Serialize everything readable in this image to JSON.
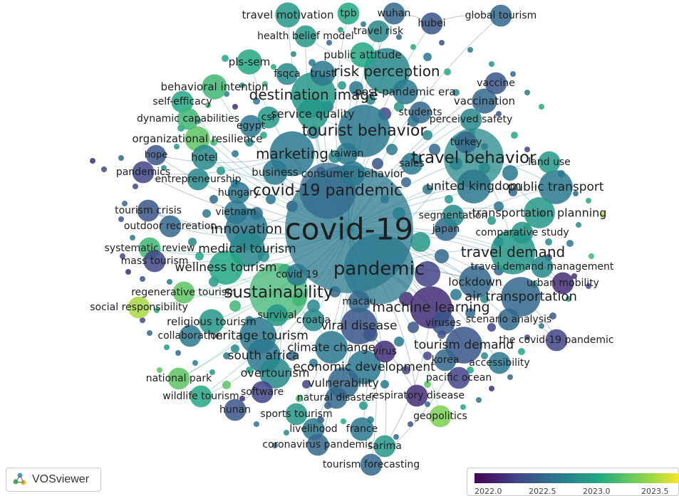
{
  "app": {
    "name": "VOSviewer"
  },
  "network": {
    "nodes": [
      {
        "id": "covid-19",
        "c": 2022.6,
        "w": 1.0
      },
      {
        "id": "pandemic",
        "c": 2022.6,
        "w": 0.45
      },
      {
        "id": "covid-19 pandemic",
        "c": 2022.5,
        "w": 0.33
      },
      {
        "id": "sustainability",
        "c": 2023.0,
        "w": 0.35
      },
      {
        "id": "travel behavior",
        "c": 2022.7,
        "w": 0.36
      },
      {
        "id": "tourist behavior",
        "c": 2022.6,
        "w": 0.3
      },
      {
        "id": "risk perception",
        "c": 2022.7,
        "w": 0.25
      },
      {
        "id": "destination image",
        "c": 2022.8,
        "w": 0.24
      },
      {
        "id": "marketing",
        "c": 2022.6,
        "w": 0.24
      },
      {
        "id": "travel demand",
        "c": 2022.8,
        "w": 0.24
      },
      {
        "id": "machine learning",
        "c": 2022.2,
        "w": 0.22
      },
      {
        "id": "innovation",
        "c": 2022.6,
        "w": 0.22
      },
      {
        "id": "viral disease",
        "c": 2022.4,
        "w": 0.18
      },
      {
        "id": "heritage tourism",
        "c": 2022.6,
        "w": 0.18
      },
      {
        "id": "wellness tourism",
        "c": 2022.9,
        "w": 0.16
      },
      {
        "id": "medical tourism",
        "c": 2022.7,
        "w": 0.17
      },
      {
        "id": "south africa",
        "c": 2022.6,
        "w": 0.16
      },
      {
        "id": "air transportation",
        "c": 2022.5,
        "w": 0.2
      },
      {
        "id": "tourism demand",
        "c": 2022.4,
        "w": 0.18
      },
      {
        "id": "economic development",
        "c": 2022.6,
        "w": 0.16
      },
      {
        "id": "climate change",
        "c": 2022.6,
        "w": 0.15
      },
      {
        "id": "vulnerability",
        "c": 2022.5,
        "w": 0.14
      },
      {
        "id": "overtourism",
        "c": 2022.7,
        "w": 0.14
      },
      {
        "id": "united kingdom",
        "c": 2022.6,
        "w": 0.16
      },
      {
        "id": "public transport",
        "c": 2022.6,
        "w": 0.16
      },
      {
        "id": "transportation planning",
        "c": 2022.8,
        "w": 0.14
      },
      {
        "id": "lockdown",
        "c": 2022.5,
        "w": 0.15
      },
      {
        "id": "service quality",
        "c": 2022.8,
        "w": 0.14
      },
      {
        "id": "travel motivation",
        "c": 2022.8,
        "w": 0.1
      },
      {
        "id": "tpb",
        "c": 2022.9,
        "w": 0.08
      },
      {
        "id": "wuhan",
        "c": 2022.5,
        "w": 0.08
      },
      {
        "id": "global tourism",
        "c": 2022.5,
        "w": 0.08
      },
      {
        "id": "hubei",
        "c": 2022.4,
        "w": 0.08
      },
      {
        "id": "health belief model",
        "c": 2022.8,
        "w": 0.08
      },
      {
        "id": "travel risk",
        "c": 2022.7,
        "w": 0.08
      },
      {
        "id": "public attitude",
        "c": 2022.9,
        "w": 0.1
      },
      {
        "id": "pls-sem",
        "c": 2022.9,
        "w": 0.1
      },
      {
        "id": "fsqca",
        "c": 2022.7,
        "w": 0.08
      },
      {
        "id": "trust",
        "c": 2022.6,
        "w": 0.1
      },
      {
        "id": "vaccine",
        "c": 2022.4,
        "w": 0.08
      },
      {
        "id": "behavioral intention",
        "c": 2023.0,
        "w": 0.1
      },
      {
        "id": "post-pandemic era",
        "c": 2022.6,
        "w": 0.1
      },
      {
        "id": "vaccination",
        "c": 2022.5,
        "w": 0.1
      },
      {
        "id": "self-efficacy",
        "c": 2022.9,
        "w": 0.08
      },
      {
        "id": "csr",
        "c": 2022.8,
        "w": 0.08
      },
      {
        "id": "students",
        "c": 2022.5,
        "w": 0.08
      },
      {
        "id": "dynamic capabilities",
        "c": 2023.0,
        "w": 0.08
      },
      {
        "id": "egypt",
        "c": 2022.6,
        "w": 0.08
      },
      {
        "id": "perceived safety",
        "c": 2022.7,
        "w": 0.08
      },
      {
        "id": "organizational resilience",
        "c": 2023.1,
        "w": 0.1
      },
      {
        "id": "turkey",
        "c": 2022.5,
        "w": 0.08
      },
      {
        "id": "hope",
        "c": 2022.4,
        "w": 0.07
      },
      {
        "id": "hotel",
        "c": 2022.7,
        "w": 0.1
      },
      {
        "id": "taiwan",
        "c": 2022.6,
        "w": 0.08
      },
      {
        "id": "land use",
        "c": 2022.8,
        "w": 0.08
      },
      {
        "id": "sales",
        "c": 2022.6,
        "w": 0.08
      },
      {
        "id": "pandemics",
        "c": 2022.3,
        "w": 0.08
      },
      {
        "id": "business",
        "c": 2022.6,
        "w": 0.1
      },
      {
        "id": "consumer behavior",
        "c": 2022.6,
        "w": 0.1
      },
      {
        "id": "entrepreneurship",
        "c": 2022.7,
        "w": 0.08
      },
      {
        "id": "hungary",
        "c": 2022.6,
        "w": 0.08
      },
      {
        "id": "tourism crisis",
        "c": 2022.4,
        "w": 0.08
      },
      {
        "id": "vietnam",
        "c": 2022.6,
        "w": 0.09
      },
      {
        "id": "segmentation",
        "c": 2022.7,
        "w": 0.08
      },
      {
        "id": "outdoor recreation",
        "c": 2022.5,
        "w": 0.08
      },
      {
        "id": "japan",
        "c": 2022.5,
        "w": 0.09
      },
      {
        "id": "comparative study",
        "c": 2022.8,
        "w": 0.08
      },
      {
        "id": "systematic review",
        "c": 2023.0,
        "w": 0.08
      },
      {
        "id": "mass tourism",
        "c": 2022.3,
        "w": 0.08
      },
      {
        "id": "travel demand management",
        "c": 2022.7,
        "w": 0.08
      },
      {
        "id": "covid 19",
        "c": 2022.6,
        "w": 0.08
      },
      {
        "id": "urban mobility",
        "c": 2022.2,
        "w": 0.08
      },
      {
        "id": "regenerative tourism",
        "c": 2023.1,
        "w": 0.08
      },
      {
        "id": "macau",
        "c": 2022.5,
        "w": 0.08
      },
      {
        "id": "social responsibility",
        "c": 2023.3,
        "w": 0.08
      },
      {
        "id": "survival",
        "c": 2022.8,
        "w": 0.08
      },
      {
        "id": "religious tourism",
        "c": 2022.8,
        "w": 0.1
      },
      {
        "id": "croatia",
        "c": 2022.7,
        "w": 0.08
      },
      {
        "id": "viruses",
        "c": 2022.4,
        "w": 0.09
      },
      {
        "id": "scenario analysis",
        "c": 2022.5,
        "w": 0.08
      },
      {
        "id": "collaboration",
        "c": 2022.6,
        "w": 0.08
      },
      {
        "id": "the covid-19 pandemic",
        "c": 2022.3,
        "w": 0.08
      },
      {
        "id": "virus",
        "c": 2022.2,
        "w": 0.08
      },
      {
        "id": "korea",
        "c": 2022.5,
        "w": 0.08
      },
      {
        "id": "accessibility",
        "c": 2022.6,
        "w": 0.08
      },
      {
        "id": "national park",
        "c": 2023.1,
        "w": 0.08
      },
      {
        "id": "pacific ocean",
        "c": 2022.3,
        "w": 0.08
      },
      {
        "id": "wildlife tourism",
        "c": 2022.9,
        "w": 0.08
      },
      {
        "id": "software",
        "c": 2022.3,
        "w": 0.08
      },
      {
        "id": "natural disaster",
        "c": 2022.5,
        "w": 0.08
      },
      {
        "id": "respiratory disease",
        "c": 2022.2,
        "w": 0.08
      },
      {
        "id": "hunan",
        "c": 2022.4,
        "w": 0.08
      },
      {
        "id": "sports tourism",
        "c": 2022.8,
        "w": 0.08
      },
      {
        "id": "geopolitics",
        "c": 2023.2,
        "w": 0.08
      },
      {
        "id": "livelihood",
        "c": 2022.6,
        "w": 0.08
      },
      {
        "id": "france",
        "c": 2022.6,
        "w": 0.09
      },
      {
        "id": "coronavirus pandemic",
        "c": 2022.5,
        "w": 0.08
      },
      {
        "id": "sarima",
        "c": 2022.8,
        "w": 0.08
      },
      {
        "id": "tourism forecasting",
        "c": 2022.5,
        "w": 0.08
      }
    ]
  },
  "legend": {
    "ticks": [
      "2022.0",
      "2022.5",
      "2023.0",
      "2023.5"
    ],
    "colors": [
      "#440154",
      "#414487",
      "#2a788e",
      "#22a884",
      "#7ad151",
      "#fde725"
    ]
  }
}
